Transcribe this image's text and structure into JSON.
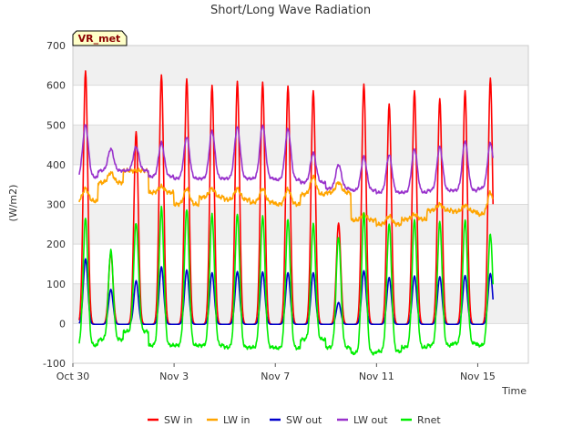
{
  "chart_data": {
    "type": "line",
    "title": "Short/Long Wave Radiation",
    "xlabel": "Time",
    "ylabel": "(W/m2)",
    "badge": "VR_met",
    "ylim": [
      -100,
      700
    ],
    "yticks": [
      -100,
      0,
      100,
      200,
      300,
      400,
      500,
      600,
      700
    ],
    "xlim": [
      0,
      18
    ],
    "xtick_labels": [
      {
        "day": 0,
        "label": "Oct 30"
      },
      {
        "day": 4,
        "label": "Nov 3"
      },
      {
        "day": 8,
        "label": "Nov 7"
      },
      {
        "day": 12,
        "label": "Nov 11"
      },
      {
        "day": 16,
        "label": "Nov 15"
      }
    ],
    "grid": true,
    "legend_position": "bottom",
    "x_unit": "days since Oct 30",
    "days": [
      {
        "day_index": 0,
        "sw_in_peak": 638,
        "lw_in_night": 308,
        "lw_in_day": 340,
        "lw_out_night": 368,
        "lw_out_peak": 500,
        "sw_out_peak": 165,
        "rnet_night": -55,
        "rnet_peak": 265
      },
      {
        "day_index": 1,
        "sw_in_peak": 180,
        "lw_in_night": 355,
        "lw_in_day": 380,
        "lw_out_night": 385,
        "lw_out_peak": 440,
        "sw_out_peak": 88,
        "rnet_night": -40,
        "rnet_peak": 185
      },
      {
        "day_index": 2,
        "sw_in_peak": 485,
        "lw_in_night": 385,
        "lw_in_day": 385,
        "lw_out_night": 385,
        "lw_out_peak": 445,
        "sw_out_peak": 110,
        "rnet_night": -20,
        "rnet_peak": 255
      },
      {
        "day_index": 3,
        "sw_in_peak": 628,
        "lw_in_night": 330,
        "lw_in_day": 345,
        "lw_out_night": 370,
        "lw_out_peak": 455,
        "sw_out_peak": 145,
        "rnet_night": -55,
        "rnet_peak": 290
      },
      {
        "day_index": 4,
        "sw_in_peak": 618,
        "lw_in_night": 300,
        "lw_in_day": 340,
        "lw_out_night": 365,
        "lw_out_peak": 470,
        "sw_out_peak": 137,
        "rnet_night": -55,
        "rnet_peak": 290
      },
      {
        "day_index": 5,
        "sw_in_peak": 602,
        "lw_in_night": 318,
        "lw_in_day": 340,
        "lw_out_night": 365,
        "lw_out_peak": 485,
        "sw_out_peak": 130,
        "rnet_night": -55,
        "rnet_peak": 275
      },
      {
        "day_index": 6,
        "sw_in_peak": 612,
        "lw_in_night": 312,
        "lw_in_day": 340,
        "lw_out_night": 365,
        "lw_out_peak": 495,
        "sw_out_peak": 133,
        "rnet_night": -60,
        "rnet_peak": 275
      },
      {
        "day_index": 7,
        "sw_in_peak": 610,
        "lw_in_night": 305,
        "lw_in_day": 340,
        "lw_out_night": 365,
        "lw_out_peak": 500,
        "sw_out_peak": 132,
        "rnet_night": -60,
        "rnet_peak": 272
      },
      {
        "day_index": 8,
        "sw_in_peak": 600,
        "lw_in_night": 300,
        "lw_in_day": 338,
        "lw_out_night": 362,
        "lw_out_peak": 490,
        "sw_out_peak": 130,
        "rnet_night": -62,
        "rnet_peak": 262
      },
      {
        "day_index": 9,
        "sw_in_peak": 588,
        "lw_in_night": 325,
        "lw_in_day": 370,
        "lw_out_night": 355,
        "lw_out_peak": 430,
        "sw_out_peak": 130,
        "rnet_night": -40,
        "rnet_peak": 250
      },
      {
        "day_index": 10,
        "sw_in_peak": 255,
        "lw_in_night": 330,
        "lw_in_day": 355,
        "lw_out_night": 340,
        "lw_out_peak": 400,
        "sw_out_peak": 55,
        "rnet_night": -60,
        "rnet_peak": 220
      },
      {
        "day_index": 11,
        "sw_in_peak": 605,
        "lw_in_night": 260,
        "lw_in_day": 275,
        "lw_out_night": 335,
        "lw_out_peak": 420,
        "sw_out_peak": 135,
        "rnet_night": -75,
        "rnet_peak": 275
      },
      {
        "day_index": 12,
        "sw_in_peak": 555,
        "lw_in_night": 250,
        "lw_in_day": 270,
        "lw_out_night": 330,
        "lw_out_peak": 425,
        "sw_out_peak": 118,
        "rnet_night": -70,
        "rnet_peak": 252
      },
      {
        "day_index": 13,
        "sw_in_peak": 588,
        "lw_in_night": 262,
        "lw_in_day": 275,
        "lw_out_night": 330,
        "lw_out_peak": 440,
        "sw_out_peak": 122,
        "rnet_night": -60,
        "rnet_peak": 262
      },
      {
        "day_index": 14,
        "sw_in_peak": 568,
        "lw_in_night": 285,
        "lw_in_day": 300,
        "lw_out_night": 335,
        "lw_out_peak": 445,
        "sw_out_peak": 120,
        "rnet_night": -55,
        "rnet_peak": 255
      },
      {
        "day_index": 15,
        "sw_in_peak": 588,
        "lw_in_night": 282,
        "lw_in_day": 298,
        "lw_out_night": 335,
        "lw_out_peak": 460,
        "sw_out_peak": 123,
        "rnet_night": -50,
        "rnet_peak": 262
      },
      {
        "day_index": 16,
        "sw_in_peak": 620,
        "lw_in_night": 275,
        "lw_in_day": 330,
        "lw_out_night": 340,
        "lw_out_peak": 455,
        "sw_out_peak": 128,
        "rnet_night": -55,
        "rnet_peak": 225
      }
    ],
    "series": [
      {
        "name": "SW in",
        "key": "sw_in",
        "color": "#ff0000"
      },
      {
        "name": "LW in",
        "key": "lw_in",
        "color": "#ffa500"
      },
      {
        "name": "SW out",
        "key": "sw_out",
        "color": "#0000cc"
      },
      {
        "name": "LW out",
        "key": "lw_out",
        "color": "#9932cc"
      },
      {
        "name": "Rnet",
        "key": "rnet",
        "color": "#00ee00"
      }
    ]
  }
}
